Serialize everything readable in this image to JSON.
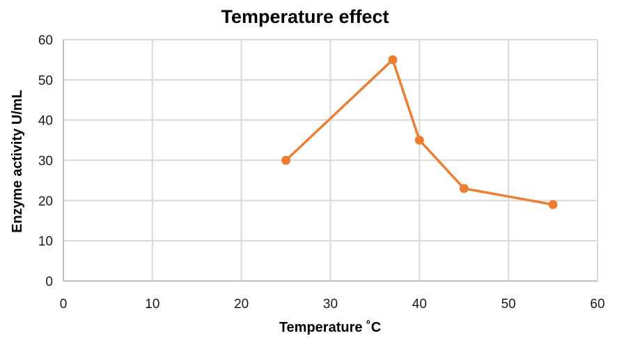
{
  "chart_data": {
    "type": "scatter",
    "title": "Temperature effect",
    "xlabel": "Temperature ˚C",
    "ylabel": "Enzyme activity U/mL",
    "xlim": [
      0,
      60
    ],
    "ylim": [
      0,
      60
    ],
    "x_ticks": [
      0,
      10,
      20,
      30,
      40,
      50,
      60
    ],
    "y_ticks": [
      0,
      10,
      20,
      30,
      40,
      50,
      60
    ],
    "grid": true,
    "legend": "none",
    "series": [
      {
        "x": [
          25,
          37,
          40,
          45,
          55
        ],
        "y": [
          30,
          55,
          35,
          23,
          19
        ],
        "color": "#ED7D31",
        "lines": true,
        "markers": true
      }
    ]
  }
}
